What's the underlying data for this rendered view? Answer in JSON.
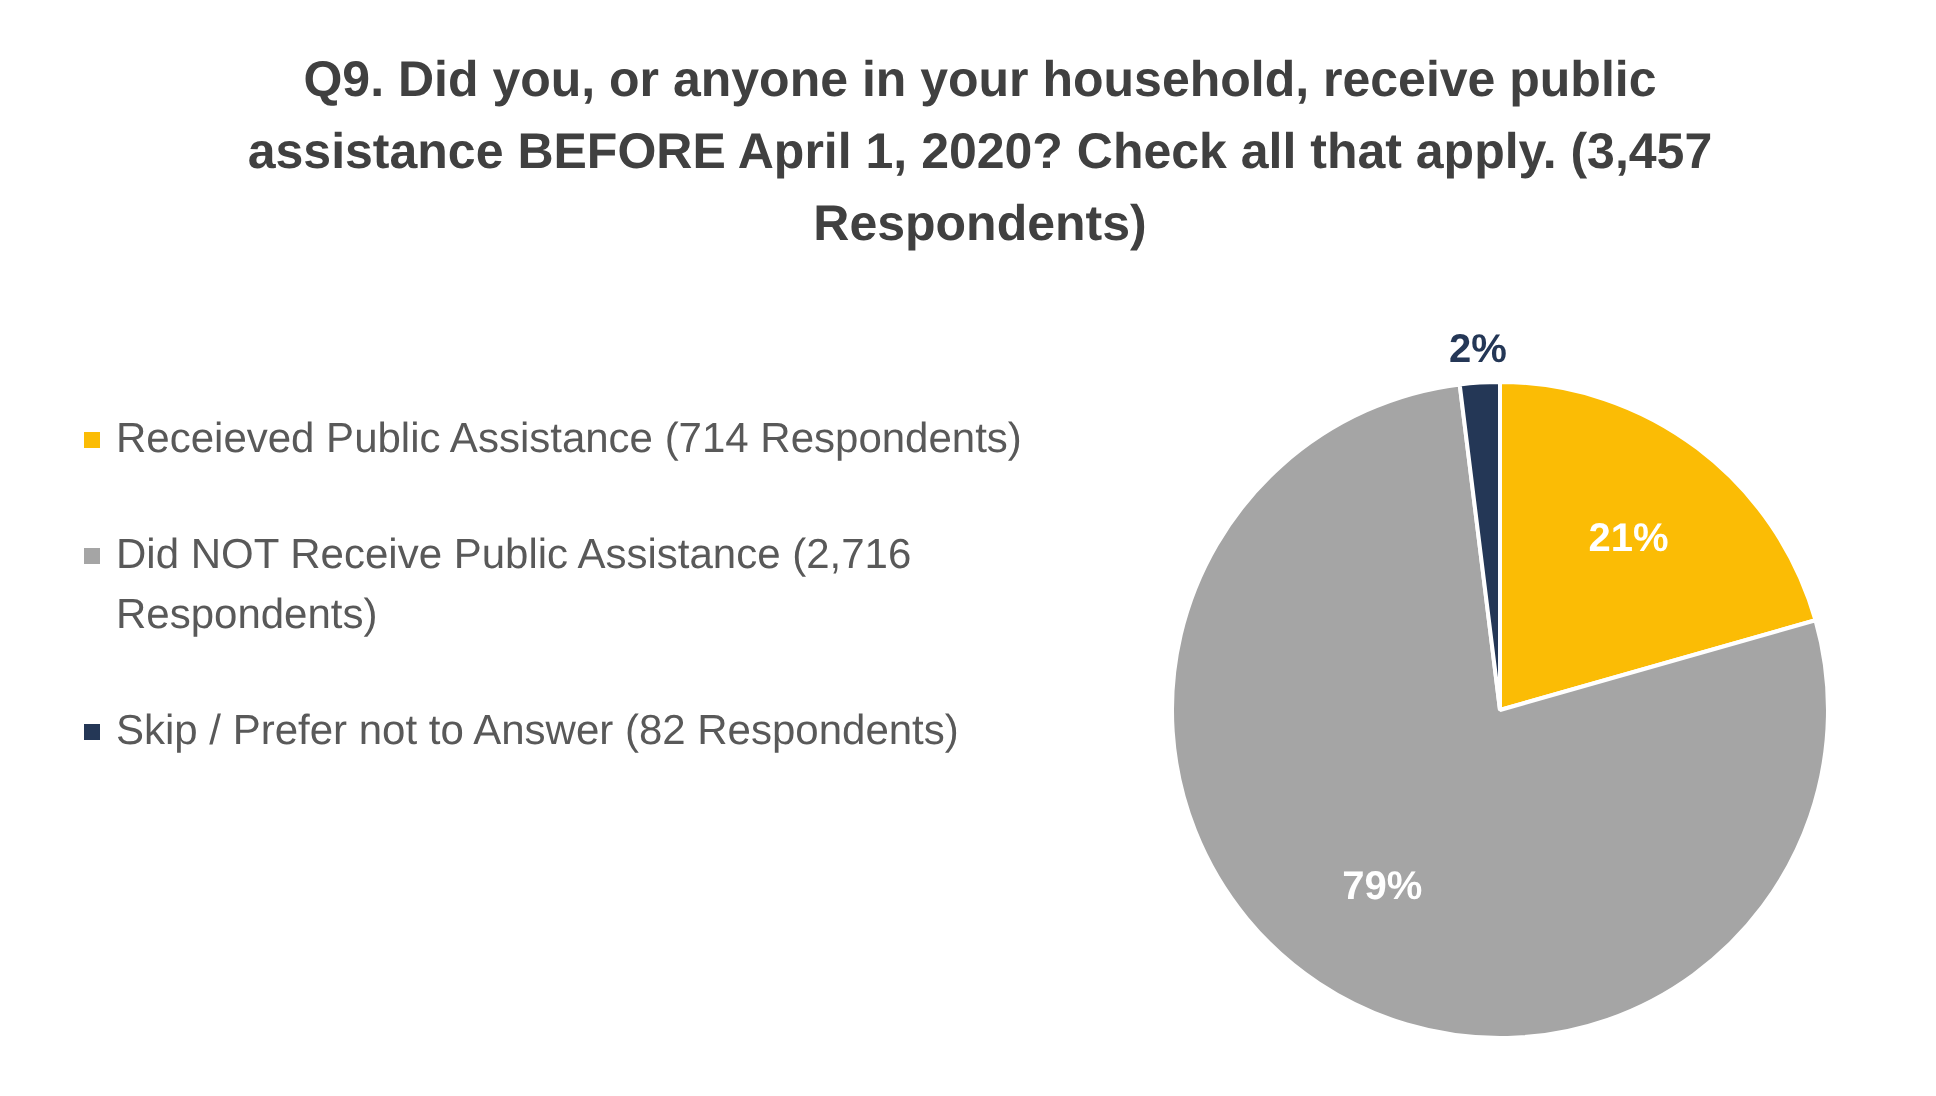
{
  "chart_data": {
    "type": "pie",
    "title": "Q9. Did you, or anyone in your household, receive public assistance BEFORE  April 1, 2020?  Check all that apply. (3,457 Respondents)",
    "categories": [
      "Receieved Public Assistance (714 Respondents)",
      "Did NOT Receive Public Assistance (2,716 Respondents)",
      "Skip / Prefer not to Answer (82 Respondents)"
    ],
    "values": [
      21,
      79,
      2
    ],
    "colors": [
      "#fbbc05",
      "#a5a5a5",
      "#243756"
    ],
    "value_labels": [
      "21%",
      "79%",
      "2%"
    ],
    "legend": "left"
  }
}
